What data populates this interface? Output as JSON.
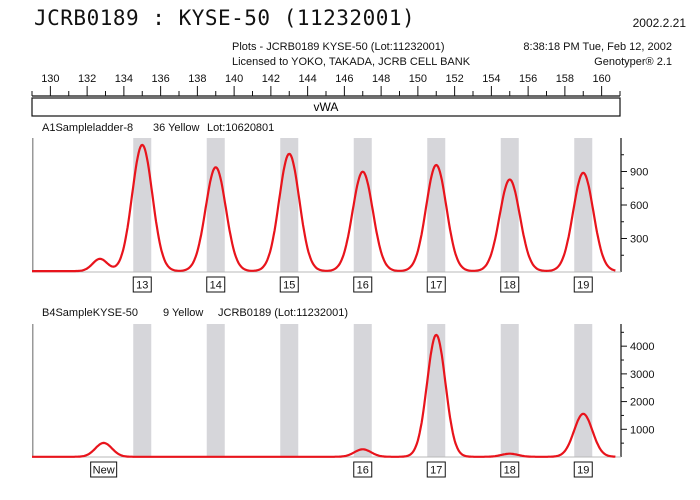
{
  "header": {
    "title": "JCRB0189 : KYSE-50 (11232001)",
    "date": "2002.2.21",
    "plots_line": "Plots - JCRB0189 KYSE-50 (Lot:11232001)",
    "timestamp": "8:38:18 PM Tue, Feb 12, 2002",
    "license_line": "Licensed to YOKO, TAKADA, JCRB CELL BANK",
    "software": "Genotyper® 2.1"
  },
  "chart_data": {
    "type": "line",
    "x_axis": {
      "range": [
        129,
        161
      ],
      "ticks": [
        130,
        132,
        134,
        136,
        138,
        140,
        142,
        144,
        146,
        148,
        150,
        152,
        154,
        156,
        158,
        160
      ]
    },
    "locus": "vWA",
    "allelic_bins": [
      135,
      139,
      143,
      147,
      151,
      155,
      159
    ],
    "panels": [
      {
        "label": "A1Sampleladder-8",
        "dye": "36 Yellow",
        "lot": "Lot:10620801",
        "y_ticks": [
          300,
          600,
          900
        ],
        "ylim": [
          0,
          1200
        ],
        "trace_color": "#e8141c",
        "peaks": [
          {
            "x": 132.7,
            "height": 110,
            "width": 0.4
          },
          {
            "x": 135.0,
            "height": 1130,
            "width": 0.55
          },
          {
            "x": 139.0,
            "height": 930,
            "width": 0.55
          },
          {
            "x": 143.0,
            "height": 1050,
            "width": 0.55
          },
          {
            "x": 147.0,
            "height": 890,
            "width": 0.55
          },
          {
            "x": 151.0,
            "height": 950,
            "width": 0.55
          },
          {
            "x": 155.0,
            "height": 820,
            "width": 0.55
          },
          {
            "x": 159.0,
            "height": 880,
            "width": 0.55
          }
        ],
        "allele_calls": [
          {
            "x": 135,
            "label": "13"
          },
          {
            "x": 139,
            "label": "14"
          },
          {
            "x": 143,
            "label": "15"
          },
          {
            "x": 147,
            "label": "16"
          },
          {
            "x": 151,
            "label": "17"
          },
          {
            "x": 155,
            "label": "18"
          },
          {
            "x": 159,
            "label": "19"
          }
        ]
      },
      {
        "label": "B4SampleKYSE-50",
        "dye": "9 Yellow",
        "lot": "JCRB0189  (Lot:11232001)",
        "y_ticks": [
          1000,
          2000,
          3000,
          4000
        ],
        "ylim": [
          0,
          4800
        ],
        "trace_color": "#e8141c",
        "peaks": [
          {
            "x": 132.9,
            "height": 500,
            "width": 0.45
          },
          {
            "x": 147.0,
            "height": 270,
            "width": 0.45
          },
          {
            "x": 151.0,
            "height": 4400,
            "width": 0.5
          },
          {
            "x": 155.0,
            "height": 110,
            "width": 0.45
          },
          {
            "x": 159.0,
            "height": 1550,
            "width": 0.5
          }
        ],
        "allele_calls": [
          {
            "x": 132.9,
            "label": "New"
          },
          {
            "x": 147,
            "label": "16"
          },
          {
            "x": 151,
            "label": "17"
          },
          {
            "x": 155,
            "label": "18"
          },
          {
            "x": 159,
            "label": "19"
          }
        ]
      }
    ]
  }
}
